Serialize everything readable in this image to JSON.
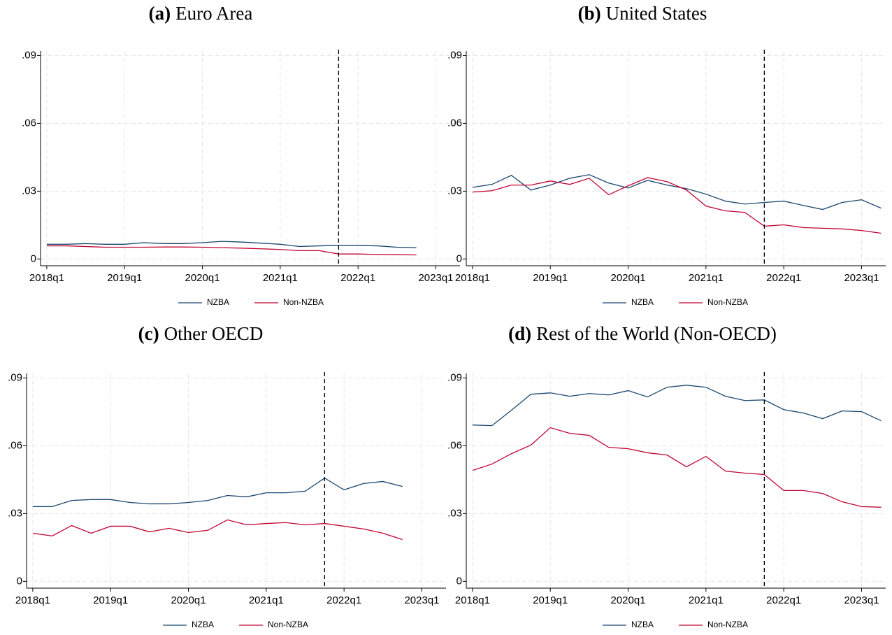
{
  "chart_data": [
    {
      "type": "line",
      "label": "(a)",
      "title": "Euro Area",
      "x": [
        2018,
        2018.25,
        2018.5,
        2018.75,
        2019,
        2019.25,
        2019.5,
        2019.75,
        2020,
        2020.25,
        2020.5,
        2020.75,
        2021,
        2021.25,
        2021.5,
        2021.75,
        2022,
        2022.25,
        2022.5,
        2022.75
      ],
      "series": [
        {
          "name": "NZBA",
          "color": "#1a476f",
          "values": [
            0.0065,
            0.0065,
            0.0068,
            0.0065,
            0.0065,
            0.0072,
            0.0068,
            0.0068,
            0.0072,
            0.0078,
            0.0075,
            0.007,
            0.0065,
            0.0055,
            0.0058,
            0.006,
            0.006,
            0.0058,
            0.0052,
            0.005
          ]
        },
        {
          "name": "Non-NZBA",
          "color": "#c10534",
          "values": [
            0.0058,
            0.0058,
            0.0055,
            0.0052,
            0.0052,
            0.0052,
            0.0053,
            0.0053,
            0.0052,
            0.005,
            0.0048,
            0.0045,
            0.0042,
            0.0037,
            0.0037,
            0.0022,
            0.0022,
            0.002,
            0.0019,
            0.0018
          ]
        }
      ],
      "xlim": [
        2017.92,
        2023.31
      ],
      "xticks": [
        {
          "value": 2018,
          "label": "2018q1"
        },
        {
          "value": 2019,
          "label": "2019q1"
        },
        {
          "value": 2020,
          "label": "2020q1"
        },
        {
          "value": 2021,
          "label": "2021q1"
        },
        {
          "value": 2022,
          "label": "2022q1"
        },
        {
          "value": 2023,
          "label": "2023q1"
        }
      ],
      "ylim": [
        -0.003,
        0.092
      ],
      "yticks": [
        0,
        {
          "value": 0.03,
          "label": ".03"
        },
        {
          "value": 0.06,
          "label": ".06"
        },
        {
          "value": 0.09,
          "label": ".09"
        }
      ],
      "vline": 2021.75,
      "grid": true,
      "legend": "bottom"
    },
    {
      "type": "line",
      "label": "(b)",
      "title": "United States",
      "x": [
        2018,
        2018.25,
        2018.5,
        2018.75,
        2019,
        2019.25,
        2019.5,
        2019.75,
        2020,
        2020.25,
        2020.5,
        2020.75,
        2021,
        2021.25,
        2021.5,
        2021.75,
        2022,
        2022.25,
        2022.5,
        2022.75,
        2023,
        2023.25
      ],
      "series": [
        {
          "name": "NZBA",
          "color": "#1a476f",
          "values": [
            0.0317,
            0.033,
            0.037,
            0.0305,
            0.0327,
            0.0357,
            0.0373,
            0.0336,
            0.0314,
            0.0348,
            0.0327,
            0.0311,
            0.0287,
            0.0256,
            0.0243,
            0.025,
            0.0256,
            0.0237,
            0.0219,
            0.025,
            0.0262,
            0.0225
          ]
        },
        {
          "name": "Non-NZBA",
          "color": "#c10534",
          "values": [
            0.0296,
            0.0302,
            0.0327,
            0.0327,
            0.0345,
            0.033,
            0.0357,
            0.0284,
            0.0324,
            0.036,
            0.0342,
            0.0305,
            0.0234,
            0.0213,
            0.0206,
            0.0145,
            0.0151,
            0.0139,
            0.0136,
            0.0133,
            0.0126,
            0.0114
          ]
        }
      ],
      "xlim": [
        2017.92,
        2023.31
      ],
      "xticks": [
        {
          "value": 2018,
          "label": "2018q1"
        },
        {
          "value": 2019,
          "label": "2019q1"
        },
        {
          "value": 2020,
          "label": "2020q1"
        },
        {
          "value": 2021,
          "label": "2021q1"
        },
        {
          "value": 2022,
          "label": "2022q1"
        },
        {
          "value": 2023,
          "label": "2023q1"
        }
      ],
      "ylim": [
        -0.003,
        0.092
      ],
      "yticks": [
        0,
        {
          "value": 0.03,
          "label": ".03"
        },
        {
          "value": 0.06,
          "label": ".06"
        },
        {
          "value": 0.09,
          "label": ".09"
        }
      ],
      "vline": 2021.75,
      "grid": true,
      "legend": "bottom"
    },
    {
      "type": "line",
      "label": "(c)",
      "title": "Other OECD",
      "x": [
        2018,
        2018.25,
        2018.5,
        2018.75,
        2019,
        2019.25,
        2019.5,
        2019.75,
        2020,
        2020.25,
        2020.5,
        2020.75,
        2021,
        2021.25,
        2021.5,
        2021.75,
        2022,
        2022.25,
        2022.5,
        2022.75
      ],
      "series": [
        {
          "name": "NZBA",
          "color": "#1a476f",
          "values": [
            0.0331,
            0.0331,
            0.0358,
            0.0362,
            0.0362,
            0.0349,
            0.0343,
            0.0343,
            0.0349,
            0.0358,
            0.038,
            0.0374,
            0.0392,
            0.0392,
            0.0399,
            0.0457,
            0.0405,
            0.0433,
            0.0442,
            0.042
          ]
        },
        {
          "name": "Non-NZBA",
          "color": "#c10534",
          "values": [
            0.0213,
            0.0201,
            0.0247,
            0.0213,
            0.0244,
            0.0244,
            0.0219,
            0.0235,
            0.0216,
            0.0226,
            0.0272,
            0.025,
            0.0256,
            0.026,
            0.025,
            0.0256,
            0.0244,
            0.0232,
            0.0213,
            0.0185
          ]
        }
      ],
      "xlim": [
        2017.92,
        2023.31
      ],
      "xticks": [
        {
          "value": 2018,
          "label": "2018q1"
        },
        {
          "value": 2019,
          "label": "2019q1"
        },
        {
          "value": 2020,
          "label": "2020q1"
        },
        {
          "value": 2021,
          "label": "2021q1"
        },
        {
          "value": 2022,
          "label": "2022q1"
        },
        {
          "value": 2023,
          "label": "2023q1"
        }
      ],
      "ylim": [
        -0.003,
        0.092
      ],
      "yticks": [
        0,
        {
          "value": 0.03,
          "label": ".03"
        },
        {
          "value": 0.06,
          "label": ".06"
        },
        {
          "value": 0.09,
          "label": ".09"
        }
      ],
      "vline": 2021.75,
      "grid": true,
      "legend": "bottom"
    },
    {
      "type": "line",
      "label": "(d)",
      "title": "Rest of the World (Non-OECD)",
      "x": [
        2018,
        2018.25,
        2018.5,
        2018.75,
        2019,
        2019.25,
        2019.5,
        2019.75,
        2020,
        2020.25,
        2020.5,
        2020.75,
        2021,
        2021.25,
        2021.5,
        2021.75,
        2022,
        2022.25,
        2022.5,
        2022.75,
        2023,
        2023.25
      ],
      "series": [
        {
          "name": "NZBA",
          "color": "#1a476f",
          "values": [
            0.0692,
            0.0689,
            0.0757,
            0.0828,
            0.0834,
            0.0819,
            0.0831,
            0.0825,
            0.0844,
            0.0816,
            0.0859,
            0.0868,
            0.0859,
            0.0819,
            0.08,
            0.0803,
            0.076,
            0.0745,
            0.072,
            0.0754,
            0.0751,
            0.0711
          ]
        },
        {
          "name": "Non-NZBA",
          "color": "#c10534",
          "values": [
            0.0491,
            0.0519,
            0.0565,
            0.0603,
            0.068,
            0.0655,
            0.0646,
            0.0593,
            0.0587,
            0.0569,
            0.0559,
            0.0507,
            0.0553,
            0.0488,
            0.0479,
            0.0473,
            0.0402,
            0.0402,
            0.0389,
            0.0352,
            0.0331,
            0.0328
          ]
        }
      ],
      "xlim": [
        2017.92,
        2023.31
      ],
      "xticks": [
        {
          "value": 2018,
          "label": "2018q1"
        },
        {
          "value": 2019,
          "label": "2019q1"
        },
        {
          "value": 2020,
          "label": "2020q1"
        },
        {
          "value": 2021,
          "label": "2021q1"
        },
        {
          "value": 2022,
          "label": "2022q1"
        },
        {
          "value": 2023,
          "label": "2023q1"
        }
      ],
      "ylim": [
        -0.003,
        0.092
      ],
      "yticks": [
        0,
        {
          "value": 0.03,
          "label": ".03"
        },
        {
          "value": 0.06,
          "label": ".06"
        },
        {
          "value": 0.09,
          "label": ".09"
        }
      ],
      "vline": 2021.75,
      "grid": true,
      "legend": "bottom"
    }
  ]
}
